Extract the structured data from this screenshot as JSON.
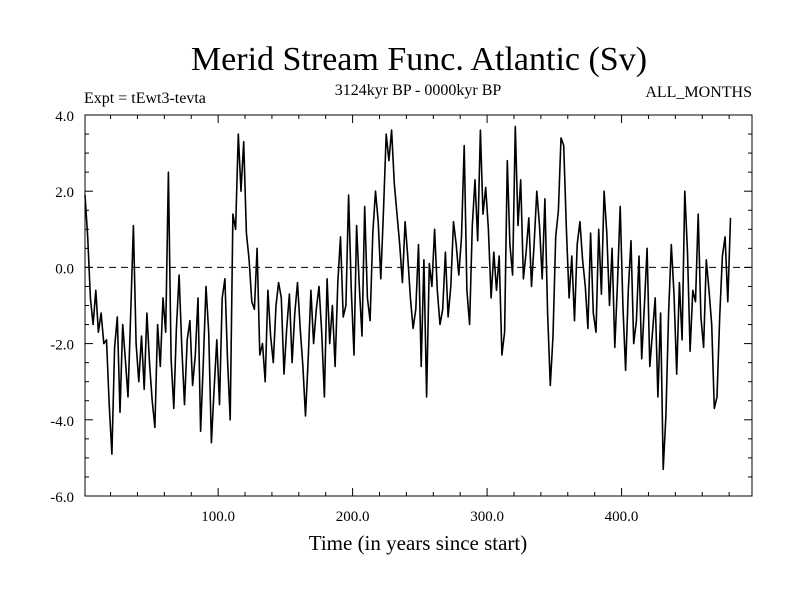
{
  "chart_data": {
    "type": "line",
    "title": "Merid Stream Func. Atlantic (Sv)",
    "subtitle_left": "Expt = tEwt3-tevta",
    "subtitle_center": "3124kyr BP - 0000kyr BP",
    "subtitle_right": "ALL_MONTHS",
    "xlabel": "Time (in years since start)",
    "ylabel": "",
    "xlim": [
      1,
      497
    ],
    "ylim": [
      -6.0,
      4.0
    ],
    "x_ticks": [
      100,
      200,
      300,
      400
    ],
    "x_tick_labels": [
      "100.0",
      "200.0",
      "300.0",
      "400.0"
    ],
    "y_ticks": [
      -6,
      -4,
      -2,
      0,
      2,
      4
    ],
    "y_tick_labels": [
      "-6.0",
      "-4.0",
      "-2.0",
      "0.0",
      "2.0",
      "4.0"
    ],
    "reference_line": 0.0,
    "series": [
      {
        "name": "Merid Stream Func. Atlantic",
        "x_start": 1,
        "x_step": 2,
        "values": [
          1.9,
          0.8,
          -0.8,
          -1.5,
          -0.6,
          -1.7,
          -1.2,
          -2.0,
          -1.9,
          -3.6,
          -4.9,
          -2.1,
          -1.3,
          -3.8,
          -1.5,
          -2.4,
          -3.4,
          -1.2,
          1.1,
          -2.0,
          -3.0,
          -1.8,
          -3.2,
          -1.2,
          -2.5,
          -3.5,
          -4.2,
          -1.5,
          -2.6,
          -0.8,
          -1.7,
          2.5,
          -2.4,
          -3.7,
          -1.6,
          -0.2,
          -2.1,
          -3.6,
          -1.9,
          -1.4,
          -3.1,
          -2.3,
          -0.8,
          -4.3,
          -2.5,
          -0.5,
          -1.7,
          -4.6,
          -3.2,
          -1.9,
          -3.6,
          -0.8,
          -0.3,
          -2.4,
          -4.0,
          1.4,
          1.0,
          3.5,
          2.0,
          3.3,
          0.9,
          0.2,
          -0.9,
          -1.1,
          0.5,
          -2.3,
          -2.0,
          -3.0,
          -0.6,
          -1.8,
          -2.5,
          -1.0,
          -0.4,
          -0.8,
          -2.8,
          -1.6,
          -0.7,
          -2.5,
          -1.2,
          -0.4,
          -1.6,
          -2.6,
          -3.9,
          -2.4,
          -0.6,
          -2.0,
          -1.1,
          -0.5,
          -1.7,
          -3.4,
          -0.3,
          -2.0,
          -1.0,
          -2.6,
          -0.4,
          0.8,
          -1.3,
          -1.0,
          1.9,
          -0.6,
          -2.3,
          1.1,
          -0.5,
          -1.8,
          1.6,
          -0.8,
          -1.4,
          0.9,
          2.0,
          1.2,
          -0.3,
          1.5,
          3.5,
          2.8,
          3.6,
          2.2,
          1.4,
          0.6,
          -0.4,
          1.2,
          0.3,
          -0.8,
          -1.6,
          -1.1,
          0.6,
          -2.6,
          0.2,
          -3.4,
          0.1,
          -0.5,
          1.0,
          -0.6,
          -1.5,
          -1.1,
          0.4,
          -1.3,
          -0.5,
          1.2,
          0.6,
          -0.2,
          0.8,
          3.2,
          -0.6,
          -1.5,
          1.1,
          2.3,
          0.7,
          3.6,
          1.4,
          2.1,
          1.0,
          -0.8,
          0.4,
          -0.6,
          0.3,
          -2.3,
          -1.7,
          2.8,
          0.6,
          -0.2,
          3.7,
          1.1,
          2.3,
          -0.3,
          0.4,
          1.3,
          -0.5,
          0.6,
          2.0,
          1.1,
          -0.3,
          1.8,
          -1.2,
          -3.1,
          -1.8,
          0.8,
          1.5,
          3.4,
          3.2,
          1.0,
          -0.8,
          0.3,
          -1.4,
          0.6,
          1.2,
          0.2,
          -0.5,
          -1.6,
          0.9,
          -1.2,
          -1.7,
          1.0,
          -0.7,
          2.0,
          0.9,
          -1.0,
          0.5,
          -2.1,
          -0.4,
          1.6,
          -1.0,
          -2.7,
          -0.6,
          0.7,
          -2.0,
          -1.4,
          0.3,
          -2.4,
          -1.0,
          0.5,
          -2.6,
          -1.7,
          -0.8,
          -3.4,
          -1.2,
          -5.3,
          -3.9,
          -1.2,
          0.6,
          -0.7,
          -2.8,
          -0.4,
          -1.9,
          2.0,
          0.4,
          -2.2,
          -0.6,
          -0.9,
          1.4,
          -1.3,
          -2.1,
          0.2,
          -0.6,
          -1.5,
          -3.7,
          -3.4,
          -1.3,
          0.3,
          0.8,
          -0.9,
          1.3
        ]
      }
    ]
  }
}
